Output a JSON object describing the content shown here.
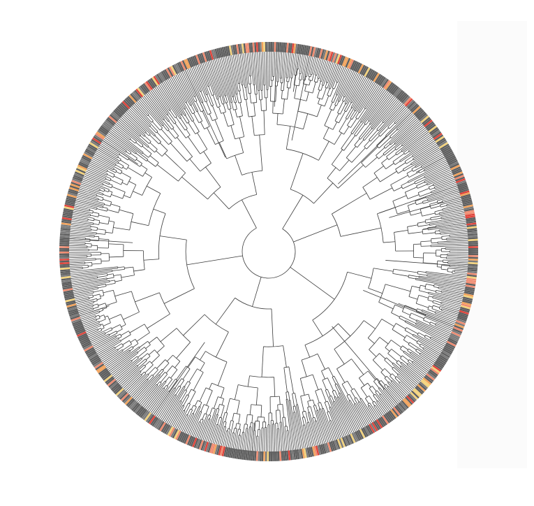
{
  "figure": {
    "kind": "circular-phylogenetic-tree",
    "layout": "radial",
    "palette": {
      "branch": "#3a3a3a",
      "tip_dark": "#5e5e5e",
      "tip_mid": "#7a7a7a",
      "highlight_red": "#e0433a",
      "highlight_salmon": "#f08a6f",
      "highlight_orange": "#f2a25a",
      "highlight_yellow": "#f3d27a",
      "background": "#ffffff"
    },
    "tip_count_estimate": 720,
    "root_clades": 6,
    "colored_tip_fraction": 0.28
  }
}
